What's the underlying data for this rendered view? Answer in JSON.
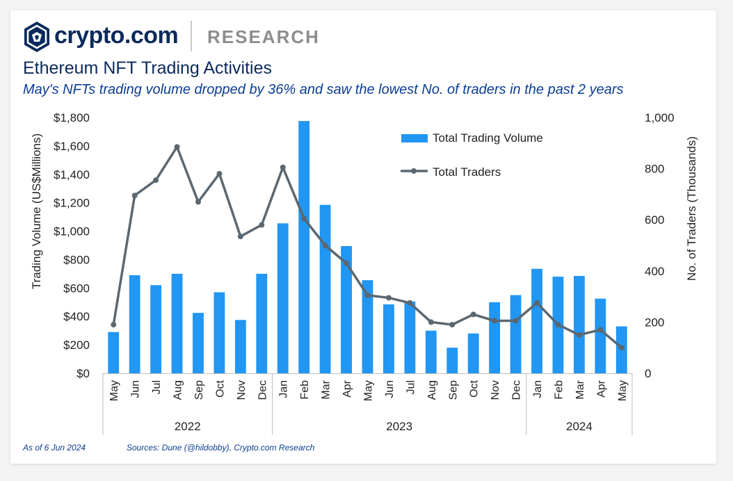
{
  "brand": {
    "name": "crypto.com",
    "section": "RESEARCH"
  },
  "header": {
    "title": "Ethereum NFT Trading Activities",
    "subtitle": "May's NFTs trading volume dropped by 36% and saw the lowest No. of traders in the past 2 years"
  },
  "footer": {
    "as_of": "As of 6 Jun 2024",
    "sources": "Sources: Dune (@hildobby), Crypto.com Research"
  },
  "colors": {
    "bar": "#2196f3",
    "line": "#5b6770",
    "brand": "#0b2a5b",
    "subtitle": "#0b3d91"
  },
  "chart_data": {
    "type": "bar",
    "categories": [
      "May",
      "Jun",
      "Jul",
      "Aug",
      "Sep",
      "Oct",
      "Nov",
      "Dec",
      "Jan",
      "Feb",
      "Mar",
      "Apr",
      "May",
      "Jun",
      "Jul",
      "Aug",
      "Sep",
      "Oct",
      "Nov",
      "Dec",
      "Jan",
      "Feb",
      "Mar",
      "Apr",
      "May"
    ],
    "year_groups": [
      {
        "label": "2022",
        "count": 8
      },
      {
        "label": "2023",
        "count": 12
      },
      {
        "label": "2024",
        "count": 5
      }
    ],
    "series": [
      {
        "name": "Total Trading Volume",
        "type": "bar",
        "axis": "left",
        "values": [
          290,
          690,
          620,
          700,
          425,
          570,
          375,
          700,
          1055,
          1775,
          1185,
          895,
          655,
          485,
          505,
          300,
          180,
          280,
          500,
          550,
          735,
          680,
          685,
          525,
          330
        ]
      },
      {
        "name": "Total Traders",
        "type": "line",
        "axis": "right",
        "values": [
          190,
          695,
          755,
          885,
          670,
          780,
          535,
          580,
          805,
          605,
          500,
          430,
          305,
          295,
          275,
          200,
          190,
          230,
          205,
          205,
          275,
          190,
          150,
          170,
          100
        ]
      }
    ],
    "ylabel": "Trading Volume (US$Millions)",
    "ylim": [
      0,
      1800
    ],
    "yticks": [
      "$0",
      "$200",
      "$400",
      "$600",
      "$800",
      "$1,000",
      "$1,200",
      "$1,400",
      "$1,600",
      "$1,800"
    ],
    "y2label": "No. of Traders (Thousands)",
    "y2lim": [
      0,
      1000
    ],
    "y2ticks": [
      "0",
      "200",
      "400",
      "600",
      "800",
      "1,000"
    ],
    "legend": "top-right"
  }
}
